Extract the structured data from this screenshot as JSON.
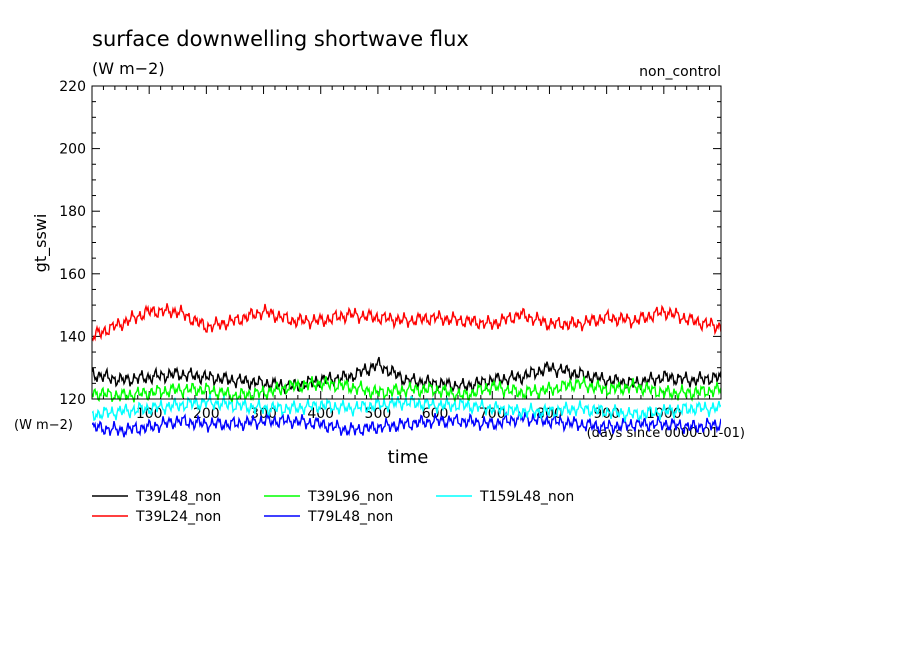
{
  "chart_data": {
    "type": "line",
    "title": "surface downwelling shortwave flux",
    "subtitle": "(W m−2)",
    "experiment_label": "non_control",
    "ylabel": "gt_sswi",
    "y_unit_label": "(W m−2)",
    "xlabel": "time",
    "x_unit_label": "(days since 0000-01-01)",
    "ylim": [
      120,
      220
    ],
    "xlim": [
      0,
      1100
    ],
    "y_ticks": [
      "120",
      "140",
      "160",
      "180",
      "200",
      "220"
    ],
    "x_ticks": [
      "100",
      "200",
      "300",
      "400",
      "500",
      "600",
      "700",
      "800",
      "900",
      "1000"
    ],
    "grid": false,
    "legend_position": "below",
    "series": [
      {
        "name": "T39L48_non",
        "color": "#000000",
        "x": [
          0,
          50,
          100,
          150,
          200,
          250,
          300,
          350,
          400,
          450,
          500,
          550,
          600,
          650,
          700,
          750,
          800,
          850,
          900,
          950,
          1000,
          1050,
          1100
        ],
        "y": [
          128,
          126,
          127,
          128,
          127,
          126,
          125,
          124,
          126,
          127,
          131,
          126,
          125,
          124,
          126,
          127,
          130,
          128,
          126,
          125,
          127,
          126,
          127
        ]
      },
      {
        "name": "T39L24_non",
        "color": "#ff0000",
        "x": [
          0,
          50,
          100,
          150,
          200,
          250,
          300,
          350,
          400,
          450,
          500,
          550,
          600,
          650,
          700,
          750,
          800,
          850,
          900,
          950,
          1000,
          1050,
          1100
        ],
        "y": [
          140,
          144,
          148,
          148,
          143,
          145,
          148,
          145,
          145,
          147,
          146,
          145,
          146,
          145,
          144,
          147,
          144,
          144,
          146,
          145,
          148,
          145,
          143
        ]
      },
      {
        "name": "T39L96_non",
        "color": "#00ff00",
        "x": [
          0,
          50,
          100,
          150,
          200,
          250,
          300,
          350,
          400,
          450,
          500,
          550,
          600,
          650,
          700,
          750,
          800,
          850,
          900,
          950,
          1000,
          1050,
          1100
        ],
        "y": [
          122,
          121,
          122,
          123,
          123,
          121,
          122,
          124,
          125,
          124,
          122,
          123,
          123,
          121,
          124,
          122,
          123,
          125,
          123,
          124,
          122,
          122,
          123
        ]
      },
      {
        "name": "T79L48_non",
        "color": "#0000ff",
        "x": [
          0,
          50,
          100,
          150,
          200,
          250,
          300,
          350,
          400,
          450,
          500,
          550,
          600,
          650,
          700,
          750,
          800,
          850,
          900,
          950,
          1000,
          1050,
          1100
        ],
        "y": [
          111,
          110,
          111,
          113,
          112,
          112,
          113,
          113,
          112,
          110,
          111,
          112,
          113,
          113,
          112,
          114,
          113,
          112,
          111,
          112,
          112,
          111,
          112
        ]
      },
      {
        "name": "T159L48_non",
        "color": "#00ffff",
        "x": [
          0,
          50,
          100,
          150,
          200,
          250,
          300,
          350,
          400,
          450,
          500,
          550,
          600,
          650,
          700,
          750,
          800,
          850,
          900,
          950,
          1000,
          1050,
          1100
        ],
        "y": [
          115,
          116,
          117,
          118,
          119,
          118,
          117,
          117,
          118,
          117,
          118,
          119,
          118,
          118,
          117,
          116,
          116,
          117,
          116,
          115,
          116,
          117,
          117
        ]
      }
    ]
  }
}
